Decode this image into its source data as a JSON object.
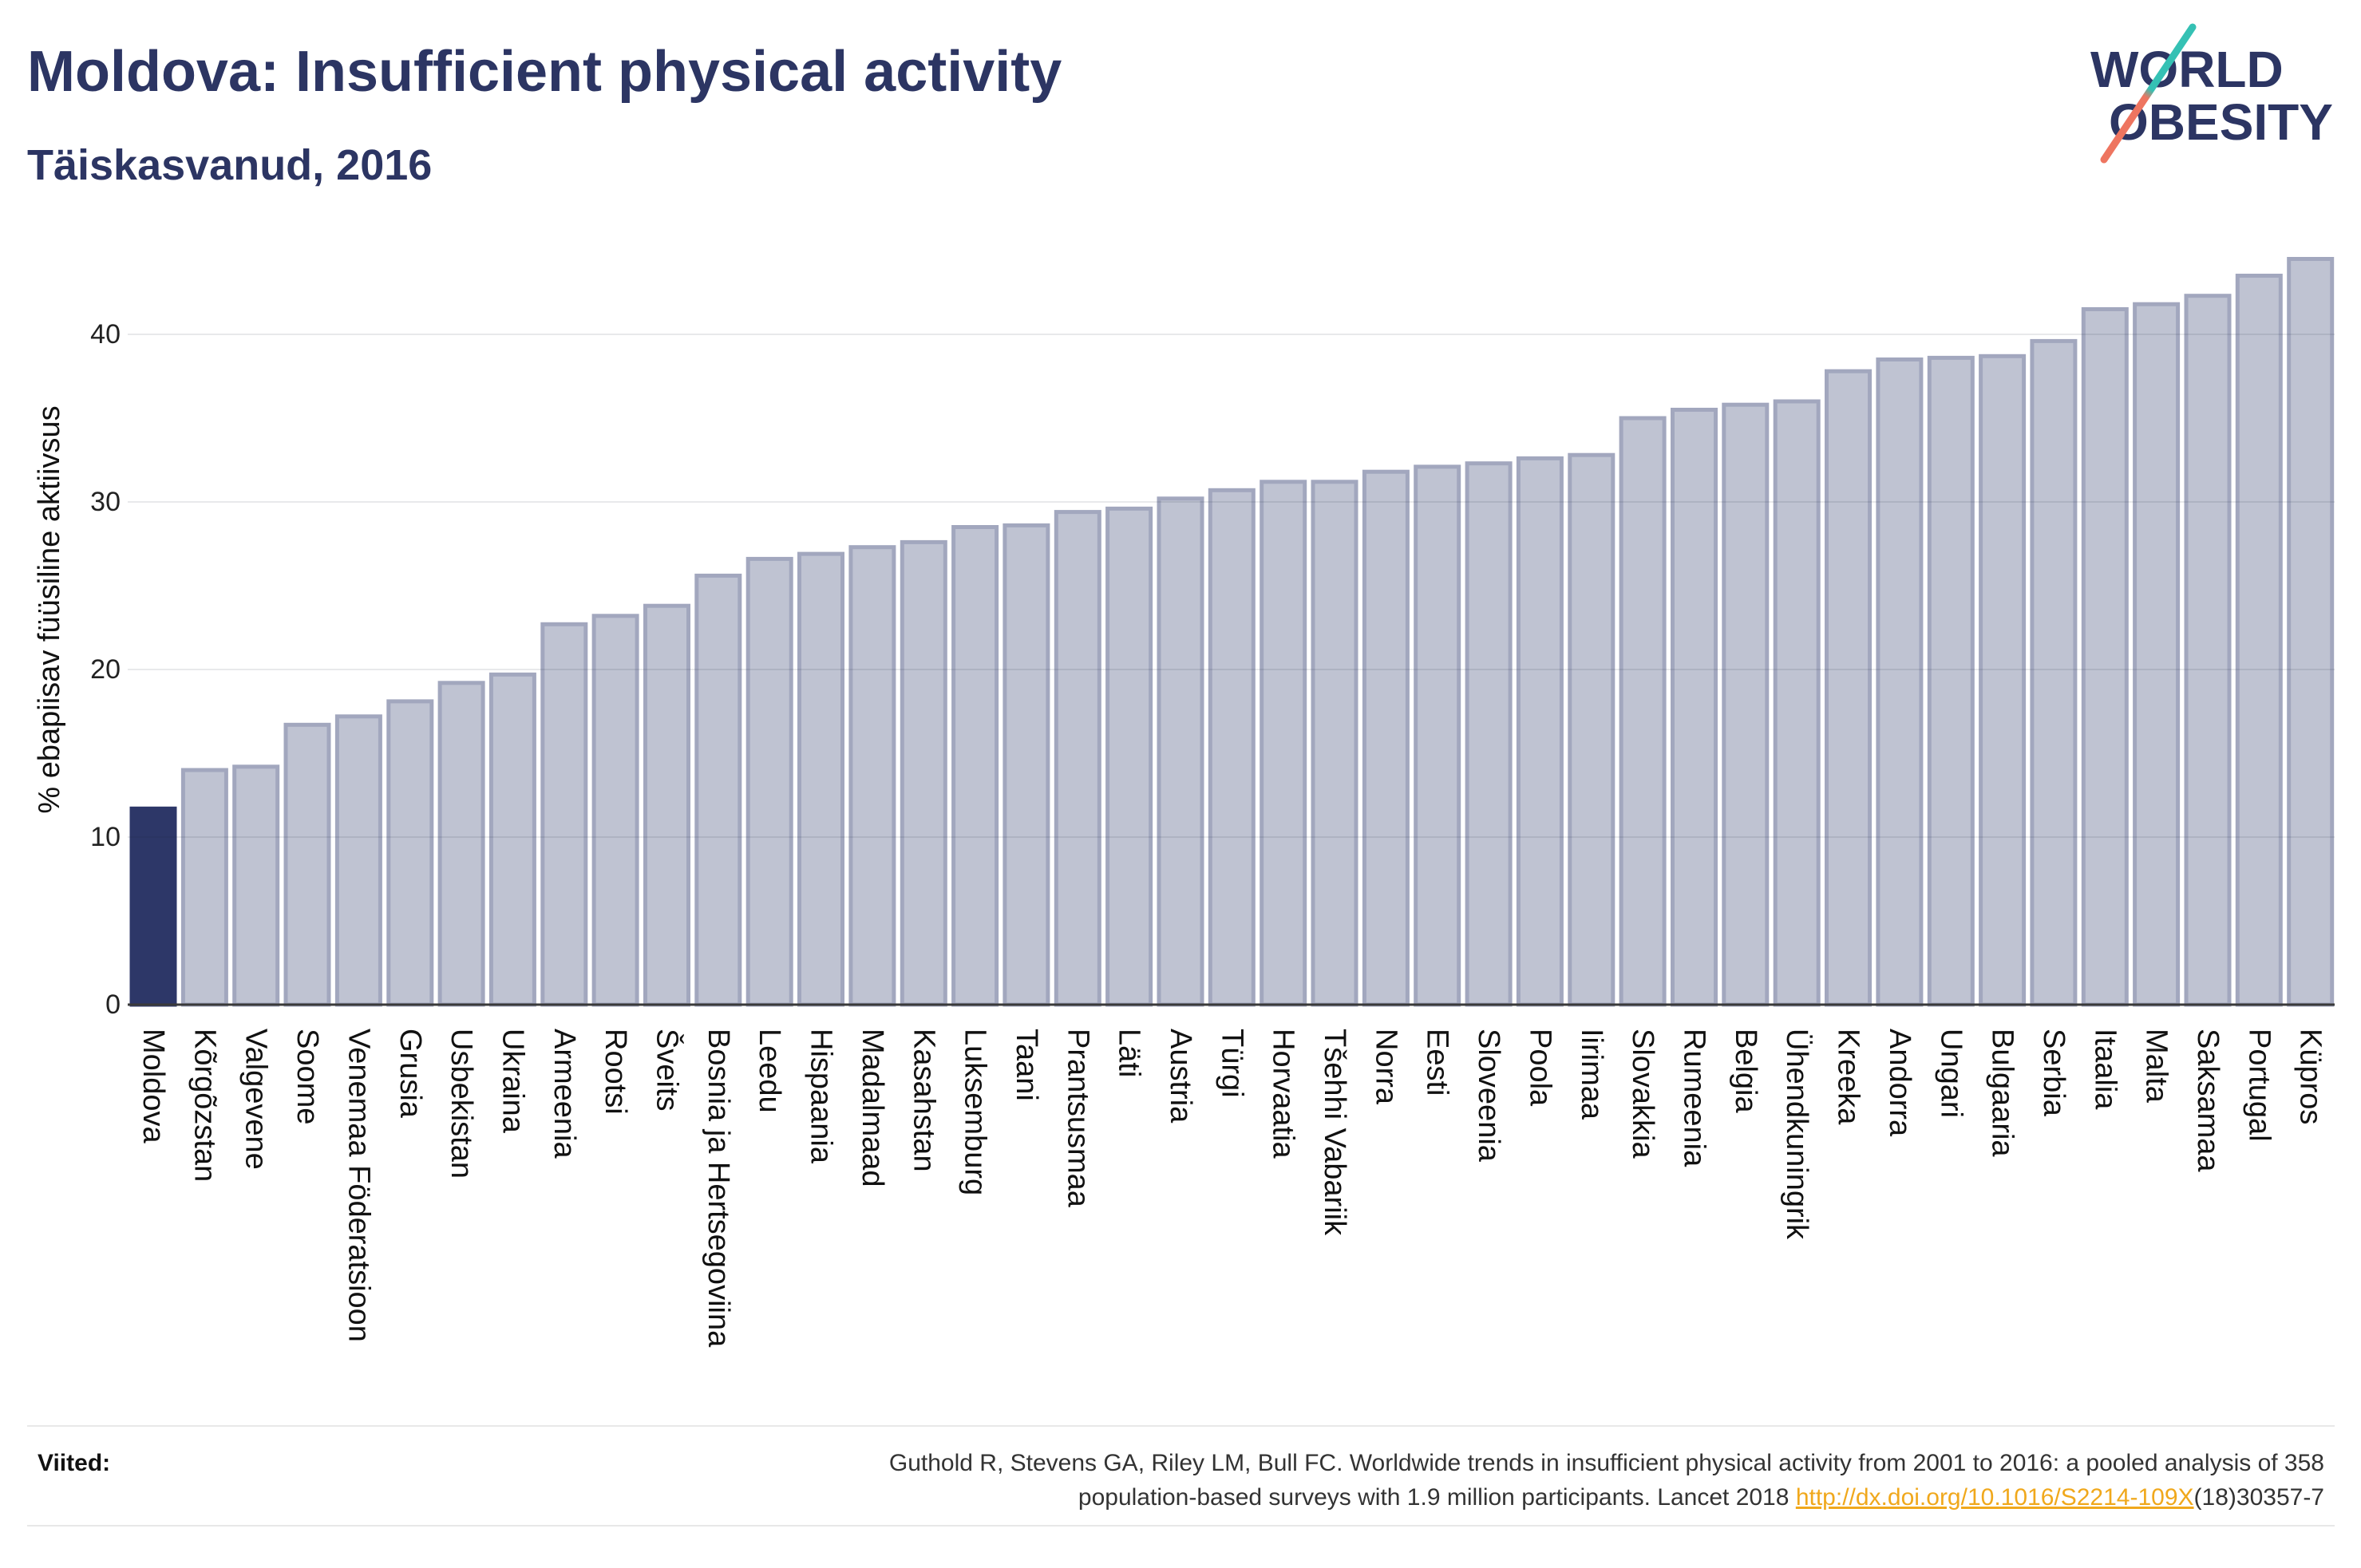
{
  "logo": {
    "line1": "WORLD",
    "line2": "OBESITY"
  },
  "colors": {
    "title": "#2c3563",
    "highlight_bar": "#2d3768",
    "bar": "#bfc3d2",
    "bar_border": "#a2a7be",
    "link": "#f0a81c",
    "logo_slash_top": "#35c1b4",
    "logo_slash_bottom": "#ee7560"
  },
  "chart_data": {
    "type": "bar",
    "title": "Moldova: Insufficient physical activity",
    "subtitle": "Täiskasvanud, 2016",
    "ylabel": "% ebapiisav füüsiline aktiivsus",
    "categories": [
      "Moldova",
      "Kõrgõzstan",
      "Valgevene",
      "Soome",
      "Venemaa Föderatsioon",
      "Grusia",
      "Usbekistan",
      "Ukraina",
      "Armeenia",
      "Rootsi",
      "Šveits",
      "Bosnia ja Hertsegoviina",
      "Leedu",
      "Hispaania",
      "Madalmaad",
      "Kasahstan",
      "Luksemburg",
      "Taani",
      "Prantsusmaa",
      "Läti",
      "Austria",
      "Türgi",
      "Horvaatia",
      "Tšehhi Vabariik",
      "Norra",
      "Eesti",
      "Sloveenia",
      "Poola",
      "Iirimaa",
      "Slovakkia",
      "Rumeenia",
      "Belgia",
      "Ühendkuningrik",
      "Kreeka",
      "Andorra",
      "Ungari",
      "Bulgaaria",
      "Serbia",
      "Itaalia",
      "Malta",
      "Saksamaa",
      "Portugal",
      "Küpros"
    ],
    "values": [
      11.7,
      14.0,
      14.2,
      16.7,
      17.2,
      18.1,
      19.2,
      19.7,
      22.7,
      23.2,
      23.8,
      25.6,
      26.6,
      26.9,
      27.3,
      27.6,
      28.5,
      28.6,
      29.4,
      29.6,
      30.2,
      30.7,
      31.2,
      31.2,
      31.8,
      32.1,
      32.3,
      32.6,
      32.8,
      35.0,
      35.5,
      35.8,
      36.0,
      37.8,
      38.5,
      38.6,
      38.7,
      39.6,
      41.5,
      41.8,
      42.3,
      43.5,
      44.5
    ],
    "highlight_index": 0,
    "ylim": [
      0,
      46
    ],
    "yticks": [
      0,
      10,
      20,
      30,
      40
    ],
    "grid": true,
    "legend": "none"
  },
  "references": {
    "label": "Viited:",
    "line1": "Guthold R, Stevens GA, Riley LM, Bull FC. Worldwide trends in insufficient physical activity from 2001 to 2016: a pooled analysis of 358",
    "line2": "population-based surveys with 1.9 million participants. Lancet 2018",
    "link": "http://dx.doi.org/10.1016/S2214-109X",
    "line2_end": "(18)30357-7"
  }
}
